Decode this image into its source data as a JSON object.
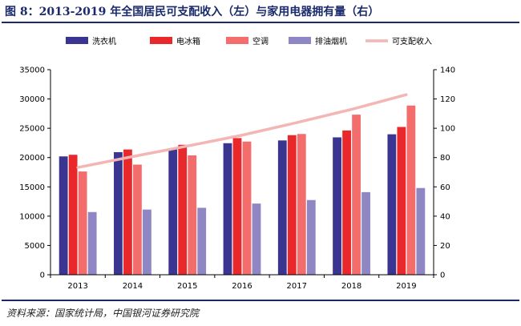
{
  "figure": {
    "title": "图 8：2013-2019 年全国居民可支配收入（左）与家用电器拥有量（右）",
    "source": "资料来源：国家统计局，中国银河证券研究院"
  },
  "chart_data": {
    "type": "bar",
    "categories": [
      "2013",
      "2014",
      "2015",
      "2016",
      "2017",
      "2018",
      "2019"
    ],
    "series": [
      {
        "name": "洗衣机",
        "axis": "right",
        "type": "bar",
        "color": "#3b3592",
        "values": [
          80.8,
          83.7,
          86.4,
          89.8,
          91.7,
          93.8,
          95.9
        ]
      },
      {
        "name": "电冰箱",
        "axis": "right",
        "type": "bar",
        "color": "#e8282b",
        "values": [
          81.9,
          85.5,
          88.7,
          93.3,
          95.3,
          98.5,
          100.9
        ]
      },
      {
        "name": "空调",
        "axis": "right",
        "type": "bar",
        "color": "#f46d6d",
        "values": [
          70.5,
          75.2,
          81.5,
          90.9,
          96.1,
          109.3,
          115.5
        ]
      },
      {
        "name": "排油烟机",
        "axis": "right",
        "type": "bar",
        "color": "#8f86c4",
        "values": [
          42.8,
          44.5,
          45.7,
          48.6,
          51.0,
          56.4,
          59.2
        ]
      },
      {
        "name": "可支配收入",
        "axis": "left",
        "type": "line",
        "color": "#f4b5b5",
        "values": [
          18311,
          20167,
          21966,
          23821,
          25974,
          28228,
          30733
        ]
      }
    ],
    "left_axis": {
      "ylim": [
        0,
        35000
      ],
      "ticks": [
        "0",
        "5000",
        "10000",
        "15000",
        "20000",
        "25000",
        "30000",
        "35000"
      ]
    },
    "right_axis": {
      "ylim": [
        0,
        140
      ],
      "ticks": [
        "0",
        "20",
        "40",
        "60",
        "80",
        "100",
        "120",
        "140"
      ]
    },
    "legend_position": "top",
    "grid": false
  }
}
